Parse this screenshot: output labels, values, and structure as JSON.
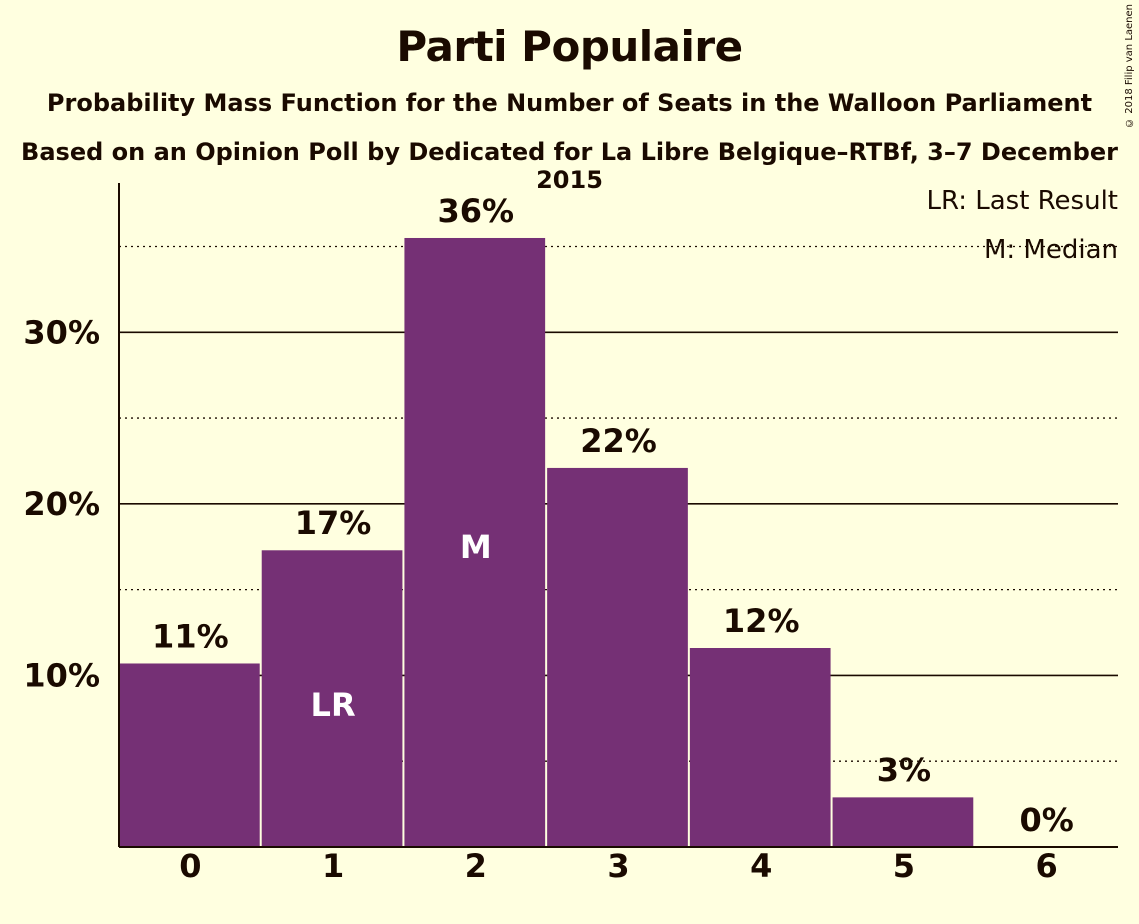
{
  "title": "Parti Populaire",
  "subtitle": "Probability Mass Function for the Number of Seats in the Walloon Parliament",
  "subtitle2": "Based on an Opinion Poll by Dedicated for La Libre Belgique–RTBf, 3–7 December 2015",
  "copyright": "© 2018 Filip van Laenen",
  "legend": [
    "LR: Last Result",
    "M: Median"
  ],
  "colors": {
    "bar": "#753075",
    "background": "#ffffe0",
    "text": "#1a0a00",
    "bar_label": "#ffffff"
  },
  "chart_data": {
    "type": "bar",
    "categories": [
      "0",
      "1",
      "2",
      "3",
      "4",
      "5",
      "6"
    ],
    "values": [
      10.7,
      17.3,
      35.5,
      22.1,
      11.6,
      2.9,
      0.0
    ],
    "value_labels": [
      "11%",
      "17%",
      "36%",
      "22%",
      "12%",
      "3%",
      "0%"
    ],
    "bar_annotations": {
      "1": "LR",
      "2": "M"
    },
    "y_ticks": [
      10,
      20,
      30
    ],
    "y_tick_labels": [
      "10%",
      "20%",
      "30%"
    ],
    "y_minor_ticks": [
      5,
      15,
      25,
      35
    ],
    "ylim": [
      0,
      38.7
    ],
    "xlabel": "",
    "ylabel": "",
    "grid": true,
    "legend_position": "top-right"
  }
}
